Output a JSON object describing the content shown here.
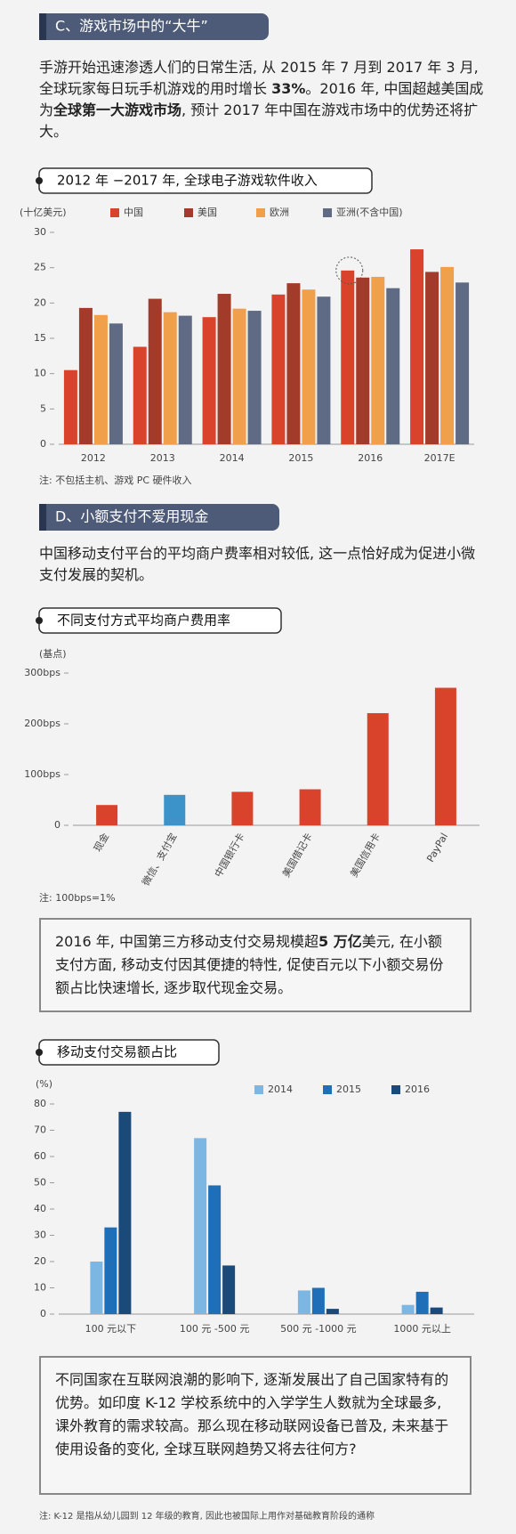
{
  "sections": [
    {
      "title": "C、游戏市场中的“大牛”"
    },
    {
      "title": "D、小额支付不爱用现金"
    }
  ],
  "paragraphs": [
    [
      "手游开始迅速渗透人们的日常生活, 从 2015 年 7 月到 2017 年 3 月, 全球玩家每日玩手机游戏的用时增长 ",
      "33%",
      "。2016 年, 中国超越美国成为",
      "全球第一大游戏市场",
      ", 预计 2017 年中国在游戏市场中的优势还将扩大。"
    ],
    [
      "中国移动支付平台的平均商户费率相对较低, 这一点恰好成为促进小微支付发展的契机。"
    ]
  ],
  "callouts": [
    [
      "2016 年, 中国第三方移动支付交易规模超",
      "5 万亿",
      "美元, 在小额支付方面, 移动支付因其便捷的特性, 促使百元以下小额交易份额占比快速增长, 逐步取代现金交易。"
    ],
    [
      "不同国家在互联网浪潮的影响下, 逐渐发展出了自己国家特有的优势。如印度 K-12 学校系统中的入学学生人数就为全球最多, 课外教育的需求较高。那么现在移动联网设备已普及, 未来基于使用设备的变化, 全球互联网趋势又将去往何方?"
    ]
  ],
  "notes": [
    "注: K-12 是指从幼儿园到 12 年级的教育, 因此也被国际上用作对基础教育阶段的通称"
  ],
  "chart_data": [
    {
      "type": "bar",
      "title": "2012 年 −2017 年, 全球电子游戏软件收入",
      "unit_label": "(十亿美元)",
      "categories": [
        "2012",
        "2013",
        "2014",
        "2015",
        "2016",
        "2017E"
      ],
      "series": [
        {
          "name": "中国",
          "color": "#d9432c",
          "values": [
            10.5,
            13.8,
            18.0,
            21.2,
            24.6,
            27.6
          ]
        },
        {
          "name": "美国",
          "color": "#a33b2a",
          "values": [
            19.3,
            20.6,
            21.3,
            22.8,
            23.6,
            24.4
          ]
        },
        {
          "name": "欧洲",
          "color": "#f0a04b",
          "values": [
            18.3,
            18.7,
            19.2,
            21.9,
            23.7,
            25.1
          ]
        },
        {
          "name": "亚洲(不含中国)",
          "color": "#5f6b85",
          "values": [
            17.1,
            18.2,
            18.9,
            20.9,
            22.1,
            22.9
          ]
        }
      ],
      "ylim": [
        0,
        30
      ],
      "yticks": [
        0,
        5,
        10,
        15,
        20,
        25,
        30
      ],
      "grid": false,
      "legend": "top",
      "note": "注: 不包括主机、游戏 PC 硬件收入"
    },
    {
      "type": "bar",
      "title": "不同支付方式平均商户费用率",
      "unit_label": "(基点)",
      "categories": [
        "现金",
        "微信、支付宝",
        "中国银行卡",
        "美国借记卡",
        "美国信用卡",
        "PayPal"
      ],
      "values": [
        40,
        60,
        66,
        71,
        221,
        271
      ],
      "colors": [
        "#d9432c",
        "#3b93c9",
        "#d9432c",
        "#d9432c",
        "#d9432c",
        "#d9432c"
      ],
      "ylim": [
        0,
        300
      ],
      "yticks": [
        0,
        {
          "value": 100,
          "label": "100bps"
        },
        {
          "value": 200,
          "label": "200bps"
        },
        {
          "value": 300,
          "label": "300bps"
        }
      ],
      "grid": false,
      "note": "注: 100bps=1%"
    },
    {
      "type": "bar",
      "title": "移动支付交易额占比",
      "unit_label": "(%)",
      "categories": [
        "100 元以下",
        "100 元 -500 元",
        "500 元 -1000 元",
        "1000 元以上"
      ],
      "series": [
        {
          "name": "2014",
          "color": "#7cb7e3",
          "values": [
            20,
            67,
            9,
            3.5
          ]
        },
        {
          "name": "2015",
          "color": "#1f6fb8",
          "values": [
            33,
            49,
            10,
            8.5
          ]
        },
        {
          "name": "2016",
          "color": "#1a4a7a",
          "values": [
            77,
            18.5,
            2,
            2.5
          ]
        }
      ],
      "ylim": [
        0,
        80
      ],
      "yticks": [
        0,
        10,
        20,
        30,
        40,
        50,
        60,
        70,
        80
      ],
      "grid": false,
      "legend": "top"
    }
  ]
}
